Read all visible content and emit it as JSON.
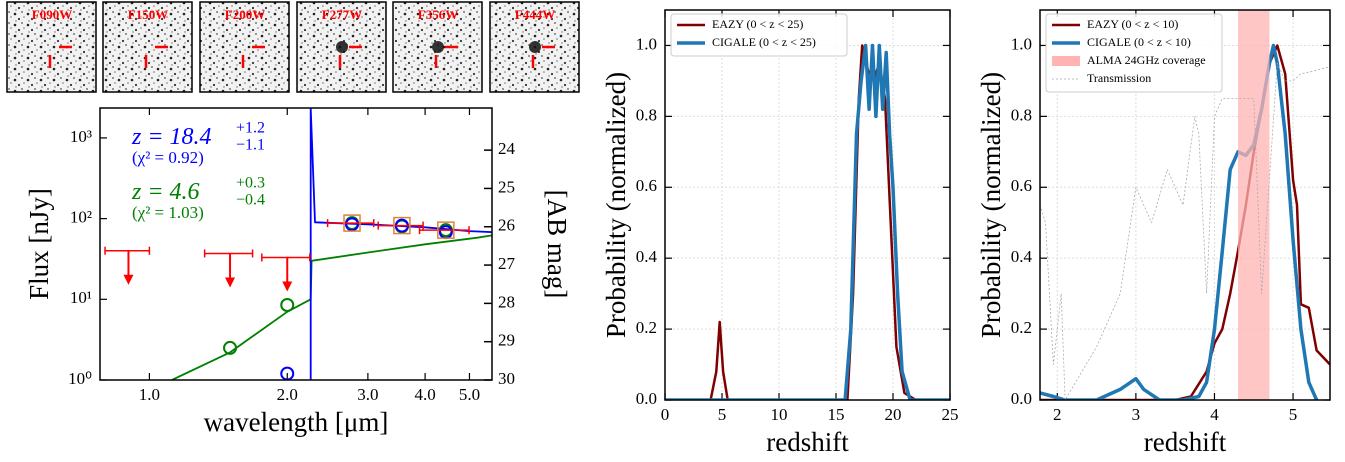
{
  "cutouts": [
    "F090W",
    "F150W",
    "F200W",
    "F277W",
    "F356W",
    "F444W"
  ],
  "chart_data": [
    {
      "type": "line",
      "xscale": "log",
      "yscale": "log",
      "x_label": "wavelength [μm]",
      "y_label": "Flux [nJy]",
      "y2_label": "[AB mag]",
      "xlim": [
        0.78,
        5.6
      ],
      "ylim": [
        1,
        2350
      ],
      "y2lim": [
        30,
        22.9
      ],
      "xticks": [
        {
          "value": 1,
          "label": "1.0"
        },
        {
          "value": 2,
          "label": "2.0"
        },
        {
          "value": 3,
          "label": "3.0"
        },
        {
          "value": 4,
          "label": "4.0"
        },
        {
          "value": 5,
          "label": "5.0"
        }
      ],
      "yticks": [
        {
          "value": 1,
          "label": "10⁰"
        },
        {
          "value": 10,
          "label": "10¹"
        },
        {
          "value": 100,
          "label": "10²"
        },
        {
          "value": 1000,
          "label": "10³"
        }
      ],
      "y2ticks": [
        24,
        25,
        26,
        27,
        28,
        29,
        30
      ],
      "series": [
        {
          "color": "#008000",
          "x": [
            1.12,
            1.5,
            2.0,
            2.25,
            2.26,
            3.0,
            4.0,
            5.2,
            5.6
          ],
          "values": [
            1,
            2.2,
            7,
            10,
            30,
            38,
            48,
            58,
            62
          ]
        },
        {
          "color": "#0000ff",
          "x": [
            2.25,
            2.25,
            2.3,
            3.0,
            4.0,
            5.0,
            5.6
          ],
          "values": [
            1,
            2350,
            90,
            85,
            78,
            70,
            68
          ]
        }
      ],
      "points": [
        {
          "color": "#008000",
          "x": [
            1.5,
            2.0,
            2.77,
            3.56,
            4.44
          ],
          "values": [
            2.5,
            8.5,
            88,
            80,
            72
          ]
        },
        {
          "color": "#0000ff",
          "x": [
            2.0,
            2.77,
            3.56,
            4.44
          ],
          "values": [
            1.2,
            85,
            82,
            68
          ]
        }
      ],
      "photometry": {
        "color": "#ff0000",
        "x": [
          0.9,
          1.5,
          2.0,
          2.77,
          3.56,
          4.44
        ],
        "values": [
          40,
          37,
          33,
          88,
          82,
          72
        ],
        "xerr": [
          0.1,
          0.18,
          0.24,
          0.32,
          0.4,
          0.55
        ],
        "upper_limit": [
          true,
          true,
          true,
          false,
          false,
          false
        ]
      },
      "annotations": [
        {
          "text": "z = 18.4",
          "sup": "+1.2",
          "sub": "−1.1",
          "chi2": "(χ² = 0.92)",
          "color": "#0000ff"
        },
        {
          "text": "z = 4.6",
          "sup": "+0.3",
          "sub": "−0.4",
          "chi2": "(χ² = 1.03)",
          "color": "#008000"
        }
      ]
    },
    {
      "type": "line",
      "grid": true,
      "x_label": "redshift",
      "y_label": "Probability (normalized)",
      "xlim": [
        0,
        25
      ],
      "ylim": [
        0,
        1.1
      ],
      "xticks": [
        0,
        5,
        10,
        15,
        20,
        25
      ],
      "yticks": [
        {
          "value": 0,
          "label": "0.0"
        },
        0.2,
        0.4,
        0.6,
        0.8,
        {
          "value": 1,
          "label": "1.0"
        }
      ],
      "series": [
        {
          "name": "EAZY (0 < z < 25)",
          "color": "#800000",
          "width": 2.5,
          "x": [
            0,
            4,
            4.5,
            4.8,
            5.1,
            5.5,
            16,
            16.5,
            17,
            17.3,
            17.8,
            18.3,
            18.8,
            19.3,
            19.8,
            20.3,
            21,
            22,
            25
          ],
          "values": [
            0,
            0,
            0.08,
            0.22,
            0.08,
            0,
            0,
            0.3,
            0.85,
            1.0,
            0.93,
            0.9,
            0.95,
            0.85,
            0.5,
            0.15,
            0.02,
            0,
            0
          ]
        },
        {
          "name": "CIGALE (0 < z < 25)",
          "color": "#1f77b4",
          "width": 3.5,
          "x": [
            0,
            15.8,
            16.3,
            16.8,
            17.2,
            17.6,
            17.9,
            18.2,
            18.5,
            18.8,
            19.1,
            19.4,
            19.7,
            20.0,
            20.4,
            20.8,
            21.5,
            25
          ],
          "values": [
            0,
            0,
            0.2,
            0.75,
            0.9,
            1.0,
            0.82,
            1.0,
            0.8,
            1.0,
            0.82,
            0.98,
            0.75,
            0.6,
            0.3,
            0.08,
            0,
            0
          ]
        }
      ]
    },
    {
      "type": "line",
      "grid": true,
      "x_label": "redshift",
      "y_label": "Probability (normalized)",
      "xlim": [
        1.78,
        5.47
      ],
      "ylim": [
        0,
        1.1
      ],
      "xticks": [
        2,
        3,
        4,
        5
      ],
      "yticks": [
        {
          "value": 0,
          "label": "0.0"
        },
        0.2,
        0.4,
        0.6,
        0.8,
        {
          "value": 1,
          "label": "1.0"
        }
      ],
      "series": [
        {
          "name": "EAZY  (0 < z < 10)",
          "color": "#800000",
          "width": 2.5,
          "x": [
            1.78,
            3.5,
            3.7,
            3.9,
            4.0,
            4.1,
            4.2,
            4.3,
            4.4,
            4.5,
            4.6,
            4.7,
            4.8,
            4.9,
            5.0,
            5.05,
            5.1,
            5.2,
            5.3,
            5.47
          ],
          "values": [
            0,
            0,
            0.01,
            0.08,
            0.16,
            0.2,
            0.3,
            0.42,
            0.55,
            0.7,
            0.82,
            0.95,
            1.0,
            0.92,
            0.62,
            0.55,
            0.27,
            0.26,
            0.14,
            0.1
          ]
        },
        {
          "name": "CIGALE  (0 < z < 10)",
          "color": "#1f77b4",
          "width": 3.5,
          "x": [
            1.78,
            1.95,
            2.1,
            2.5,
            2.8,
            3.0,
            3.1,
            3.3,
            3.6,
            3.8,
            3.9,
            4.0,
            4.1,
            4.2,
            4.3,
            4.4,
            4.5,
            4.6,
            4.7,
            4.75,
            4.8,
            4.9,
            5.0,
            5.1,
            5.2,
            5.3
          ],
          "values": [
            0.02,
            0.01,
            0,
            0,
            0.03,
            0.06,
            0.03,
            0,
            0,
            0.01,
            0.05,
            0.2,
            0.42,
            0.65,
            0.7,
            0.69,
            0.72,
            0.82,
            0.95,
            1.0,
            0.95,
            0.75,
            0.45,
            0.2,
            0.05,
            0
          ]
        },
        {
          "name": "ALMA 24GHz coverage",
          "kind": "band",
          "color": "#ffb3b3",
          "x": [
            4.3,
            4.7
          ]
        },
        {
          "name": "Transmission",
          "color": "#aaaaaa",
          "width": 0.8,
          "dash": true,
          "x": [
            1.78,
            1.85,
            1.95,
            2.0,
            2.05,
            2.1,
            2.5,
            2.8,
            3.0,
            3.2,
            3.4,
            3.6,
            3.75,
            3.8,
            3.9,
            4.0,
            4.1,
            4.3,
            4.5,
            4.6,
            4.8,
            4.9,
            5.0,
            5.1,
            5.3,
            5.47
          ],
          "values": [
            0.55,
            0.5,
            0.1,
            0.2,
            0.3,
            0,
            0.15,
            0.3,
            0.6,
            0.5,
            0.65,
            0.55,
            0.8,
            0.75,
            0.3,
            0.8,
            0.85,
            0.85,
            0.85,
            0.3,
            0.95,
            0.9,
            0.9,
            0.92,
            0.93,
            0.94
          ]
        }
      ]
    }
  ]
}
